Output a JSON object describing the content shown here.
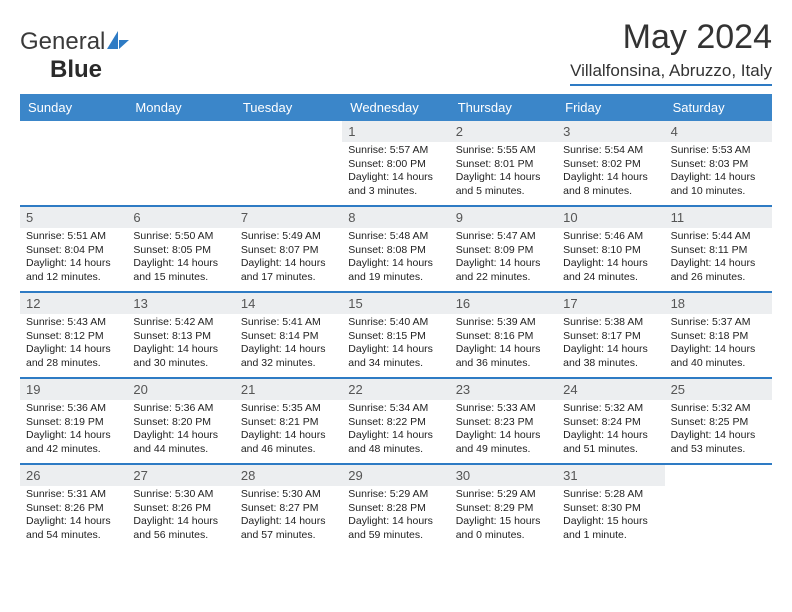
{
  "logo": {
    "text1": "General",
    "text2": "Blue"
  },
  "title": "May 2024",
  "location": "Villalfonsina, Abruzzo, Italy",
  "colors": {
    "header_bg": "#3b86c9",
    "accent_line": "#2e7bc4",
    "daynum_bg": "#eceef0",
    "page_bg": "#ffffff",
    "text": "#222222"
  },
  "day_names": [
    "Sunday",
    "Monday",
    "Tuesday",
    "Wednesday",
    "Thursday",
    "Friday",
    "Saturday"
  ],
  "weeks": [
    [
      {
        "day": "",
        "empty": true
      },
      {
        "day": "",
        "empty": true
      },
      {
        "day": "",
        "empty": true
      },
      {
        "day": "1",
        "sunrise": "Sunrise: 5:57 AM",
        "sunset": "Sunset: 8:00 PM",
        "daylight1": "Daylight: 14 hours",
        "daylight2": "and 3 minutes."
      },
      {
        "day": "2",
        "sunrise": "Sunrise: 5:55 AM",
        "sunset": "Sunset: 8:01 PM",
        "daylight1": "Daylight: 14 hours",
        "daylight2": "and 5 minutes."
      },
      {
        "day": "3",
        "sunrise": "Sunrise: 5:54 AM",
        "sunset": "Sunset: 8:02 PM",
        "daylight1": "Daylight: 14 hours",
        "daylight2": "and 8 minutes."
      },
      {
        "day": "4",
        "sunrise": "Sunrise: 5:53 AM",
        "sunset": "Sunset: 8:03 PM",
        "daylight1": "Daylight: 14 hours",
        "daylight2": "and 10 minutes."
      }
    ],
    [
      {
        "day": "5",
        "sunrise": "Sunrise: 5:51 AM",
        "sunset": "Sunset: 8:04 PM",
        "daylight1": "Daylight: 14 hours",
        "daylight2": "and 12 minutes."
      },
      {
        "day": "6",
        "sunrise": "Sunrise: 5:50 AM",
        "sunset": "Sunset: 8:05 PM",
        "daylight1": "Daylight: 14 hours",
        "daylight2": "and 15 minutes."
      },
      {
        "day": "7",
        "sunrise": "Sunrise: 5:49 AM",
        "sunset": "Sunset: 8:07 PM",
        "daylight1": "Daylight: 14 hours",
        "daylight2": "and 17 minutes."
      },
      {
        "day": "8",
        "sunrise": "Sunrise: 5:48 AM",
        "sunset": "Sunset: 8:08 PM",
        "daylight1": "Daylight: 14 hours",
        "daylight2": "and 19 minutes."
      },
      {
        "day": "9",
        "sunrise": "Sunrise: 5:47 AM",
        "sunset": "Sunset: 8:09 PM",
        "daylight1": "Daylight: 14 hours",
        "daylight2": "and 22 minutes."
      },
      {
        "day": "10",
        "sunrise": "Sunrise: 5:46 AM",
        "sunset": "Sunset: 8:10 PM",
        "daylight1": "Daylight: 14 hours",
        "daylight2": "and 24 minutes."
      },
      {
        "day": "11",
        "sunrise": "Sunrise: 5:44 AM",
        "sunset": "Sunset: 8:11 PM",
        "daylight1": "Daylight: 14 hours",
        "daylight2": "and 26 minutes."
      }
    ],
    [
      {
        "day": "12",
        "sunrise": "Sunrise: 5:43 AM",
        "sunset": "Sunset: 8:12 PM",
        "daylight1": "Daylight: 14 hours",
        "daylight2": "and 28 minutes."
      },
      {
        "day": "13",
        "sunrise": "Sunrise: 5:42 AM",
        "sunset": "Sunset: 8:13 PM",
        "daylight1": "Daylight: 14 hours",
        "daylight2": "and 30 minutes."
      },
      {
        "day": "14",
        "sunrise": "Sunrise: 5:41 AM",
        "sunset": "Sunset: 8:14 PM",
        "daylight1": "Daylight: 14 hours",
        "daylight2": "and 32 minutes."
      },
      {
        "day": "15",
        "sunrise": "Sunrise: 5:40 AM",
        "sunset": "Sunset: 8:15 PM",
        "daylight1": "Daylight: 14 hours",
        "daylight2": "and 34 minutes."
      },
      {
        "day": "16",
        "sunrise": "Sunrise: 5:39 AM",
        "sunset": "Sunset: 8:16 PM",
        "daylight1": "Daylight: 14 hours",
        "daylight2": "and 36 minutes."
      },
      {
        "day": "17",
        "sunrise": "Sunrise: 5:38 AM",
        "sunset": "Sunset: 8:17 PM",
        "daylight1": "Daylight: 14 hours",
        "daylight2": "and 38 minutes."
      },
      {
        "day": "18",
        "sunrise": "Sunrise: 5:37 AM",
        "sunset": "Sunset: 8:18 PM",
        "daylight1": "Daylight: 14 hours",
        "daylight2": "and 40 minutes."
      }
    ],
    [
      {
        "day": "19",
        "sunrise": "Sunrise: 5:36 AM",
        "sunset": "Sunset: 8:19 PM",
        "daylight1": "Daylight: 14 hours",
        "daylight2": "and 42 minutes."
      },
      {
        "day": "20",
        "sunrise": "Sunrise: 5:36 AM",
        "sunset": "Sunset: 8:20 PM",
        "daylight1": "Daylight: 14 hours",
        "daylight2": "and 44 minutes."
      },
      {
        "day": "21",
        "sunrise": "Sunrise: 5:35 AM",
        "sunset": "Sunset: 8:21 PM",
        "daylight1": "Daylight: 14 hours",
        "daylight2": "and 46 minutes."
      },
      {
        "day": "22",
        "sunrise": "Sunrise: 5:34 AM",
        "sunset": "Sunset: 8:22 PM",
        "daylight1": "Daylight: 14 hours",
        "daylight2": "and 48 minutes."
      },
      {
        "day": "23",
        "sunrise": "Sunrise: 5:33 AM",
        "sunset": "Sunset: 8:23 PM",
        "daylight1": "Daylight: 14 hours",
        "daylight2": "and 49 minutes."
      },
      {
        "day": "24",
        "sunrise": "Sunrise: 5:32 AM",
        "sunset": "Sunset: 8:24 PM",
        "daylight1": "Daylight: 14 hours",
        "daylight2": "and 51 minutes."
      },
      {
        "day": "25",
        "sunrise": "Sunrise: 5:32 AM",
        "sunset": "Sunset: 8:25 PM",
        "daylight1": "Daylight: 14 hours",
        "daylight2": "and 53 minutes."
      }
    ],
    [
      {
        "day": "26",
        "sunrise": "Sunrise: 5:31 AM",
        "sunset": "Sunset: 8:26 PM",
        "daylight1": "Daylight: 14 hours",
        "daylight2": "and 54 minutes."
      },
      {
        "day": "27",
        "sunrise": "Sunrise: 5:30 AM",
        "sunset": "Sunset: 8:26 PM",
        "daylight1": "Daylight: 14 hours",
        "daylight2": "and 56 minutes."
      },
      {
        "day": "28",
        "sunrise": "Sunrise: 5:30 AM",
        "sunset": "Sunset: 8:27 PM",
        "daylight1": "Daylight: 14 hours",
        "daylight2": "and 57 minutes."
      },
      {
        "day": "29",
        "sunrise": "Sunrise: 5:29 AM",
        "sunset": "Sunset: 8:28 PM",
        "daylight1": "Daylight: 14 hours",
        "daylight2": "and 59 minutes."
      },
      {
        "day": "30",
        "sunrise": "Sunrise: 5:29 AM",
        "sunset": "Sunset: 8:29 PM",
        "daylight1": "Daylight: 15 hours",
        "daylight2": "and 0 minutes."
      },
      {
        "day": "31",
        "sunrise": "Sunrise: 5:28 AM",
        "sunset": "Sunset: 8:30 PM",
        "daylight1": "Daylight: 15 hours",
        "daylight2": "and 1 minute."
      },
      {
        "day": "",
        "empty": true
      }
    ]
  ]
}
